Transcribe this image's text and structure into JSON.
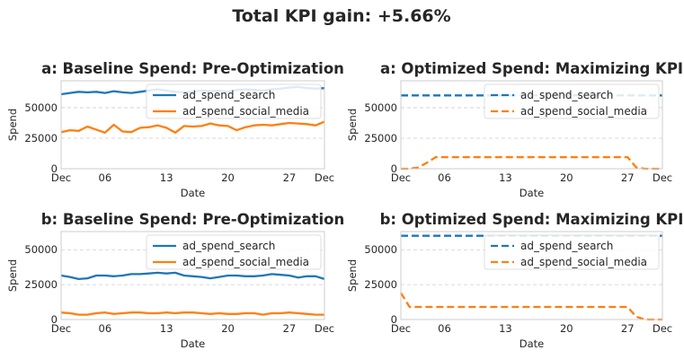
{
  "figure": {
    "title": "Total KPI gain: +5.66%"
  },
  "colors": {
    "search": "#1f77b4",
    "social": "#ff7f0e"
  },
  "chart_data": [
    {
      "type": "line",
      "title": "a: Baseline Spend: Pre-Optimization",
      "xlabel": "Date",
      "ylabel": "Spend",
      "x": [
        1,
        2,
        3,
        4,
        5,
        6,
        7,
        8,
        9,
        10,
        11,
        12,
        13,
        14,
        15,
        16,
        17,
        18,
        19,
        20,
        21,
        22,
        23,
        24,
        25,
        26,
        27,
        28,
        29,
        30,
        31
      ],
      "xticks": [
        1,
        6,
        13,
        20,
        27,
        31
      ],
      "xticklabels": [
        "Dec",
        "06",
        "13",
        "20",
        "27",
        "Dec"
      ],
      "xlim": [
        1,
        31
      ],
      "ylim": [
        0,
        72000
      ],
      "yticks": [
        0,
        25000,
        50000
      ],
      "line_style": "solid",
      "legend": "top-right",
      "grid": true,
      "series": [
        {
          "name": "ad_spend_search",
          "color": "#1f77b4",
          "values": [
            61000,
            62000,
            63000,
            62500,
            63000,
            62000,
            63500,
            62500,
            62000,
            63000,
            64000,
            65000,
            64000,
            63000,
            62500,
            63000,
            64000,
            63500,
            64000,
            63000,
            64500,
            65000,
            64500,
            64000,
            65000,
            65500,
            66500,
            67000,
            66000,
            65500,
            66000
          ]
        },
        {
          "name": "ad_spend_social_media",
          "color": "#ff7f0e",
          "values": [
            30000,
            31500,
            31000,
            34500,
            32000,
            29500,
            36000,
            30500,
            30000,
            33500,
            34000,
            35500,
            33500,
            29500,
            35000,
            34500,
            35000,
            37000,
            35500,
            35000,
            31500,
            34000,
            35500,
            36000,
            35500,
            36500,
            37500,
            37000,
            36500,
            35500,
            38500
          ]
        }
      ]
    },
    {
      "type": "line",
      "title": "a: Optimized Spend: Maximizing KPI",
      "xlabel": "Date",
      "ylabel": "Spend",
      "x": [
        1,
        2,
        3,
        4,
        5,
        6,
        7,
        8,
        9,
        10,
        11,
        12,
        13,
        14,
        15,
        16,
        17,
        18,
        19,
        20,
        21,
        22,
        23,
        24,
        25,
        26,
        27,
        28,
        29,
        30,
        31
      ],
      "xticks": [
        1,
        6,
        13,
        20,
        27,
        31
      ],
      "xticklabels": [
        "Dec",
        "06",
        "13",
        "20",
        "27",
        "Dec"
      ],
      "xlim": [
        1,
        31
      ],
      "ylim": [
        0,
        72000
      ],
      "yticks": [
        0,
        25000,
        50000
      ],
      "line_style": "dashed",
      "legend": "top-right",
      "grid": true,
      "series": [
        {
          "name": "ad_spend_search",
          "color": "#1f77b4",
          "values": [
            60000,
            60000,
            60000,
            60000,
            60000,
            60000,
            60000,
            60000,
            60000,
            60000,
            60000,
            60000,
            60000,
            60000,
            60000,
            60000,
            60000,
            60000,
            60000,
            60000,
            60000,
            60000,
            60000,
            60000,
            60000,
            60000,
            60000,
            60000,
            60000,
            60000,
            60000
          ]
        },
        {
          "name": "ad_spend_social_media",
          "color": "#ff7f0e",
          "values": [
            0,
            0,
            1000,
            5000,
            9500,
            9500,
            9500,
            9500,
            9500,
            9500,
            9500,
            9500,
            9500,
            9500,
            9500,
            9500,
            9500,
            9500,
            9500,
            9500,
            9500,
            9500,
            9500,
            9500,
            9500,
            9500,
            9500,
            1000,
            0,
            0,
            0
          ]
        }
      ]
    },
    {
      "type": "line",
      "title": "b: Baseline Spend: Pre-Optimization",
      "xlabel": "Date",
      "ylabel": "Spend",
      "x": [
        1,
        2,
        3,
        4,
        5,
        6,
        7,
        8,
        9,
        10,
        11,
        12,
        13,
        14,
        15,
        16,
        17,
        18,
        19,
        20,
        21,
        22,
        23,
        24,
        25,
        26,
        27,
        28,
        29,
        30,
        31
      ],
      "xticks": [
        1,
        6,
        13,
        20,
        27,
        31
      ],
      "xticklabels": [
        "Dec",
        "06",
        "13",
        "20",
        "27",
        "Dec"
      ],
      "xlim": [
        1,
        31
      ],
      "ylim": [
        0,
        63000
      ],
      "yticks": [
        0,
        25000,
        50000
      ],
      "line_style": "solid",
      "legend": "top-right",
      "grid": true,
      "series": [
        {
          "name": "ad_spend_search",
          "color": "#1f77b4",
          "values": [
            31500,
            30500,
            29000,
            29500,
            31500,
            31500,
            31000,
            31500,
            32500,
            32500,
            33000,
            33500,
            33000,
            33500,
            31500,
            31000,
            30500,
            29500,
            30500,
            31500,
            31500,
            31000,
            31000,
            31500,
            32500,
            32000,
            31500,
            30000,
            31000,
            31000,
            29000
          ]
        },
        {
          "name": "ad_spend_social_media",
          "color": "#ff7f0e",
          "values": [
            5000,
            4500,
            3500,
            3500,
            4500,
            5000,
            4000,
            4500,
            5000,
            5000,
            4500,
            4500,
            5000,
            4500,
            5000,
            5000,
            4500,
            4000,
            4500,
            4000,
            4000,
            4500,
            4500,
            3500,
            4500,
            4500,
            5000,
            4500,
            4000,
            3500,
            3500
          ]
        }
      ]
    },
    {
      "type": "line",
      "title": "b: Optimized Spend: Maximizing KPI",
      "xlabel": "Date",
      "ylabel": "Spend",
      "x": [
        1,
        2,
        3,
        4,
        5,
        6,
        7,
        8,
        9,
        10,
        11,
        12,
        13,
        14,
        15,
        16,
        17,
        18,
        19,
        20,
        21,
        22,
        23,
        24,
        25,
        26,
        27,
        28,
        29,
        30,
        31
      ],
      "xticks": [
        1,
        6,
        13,
        20,
        27,
        31
      ],
      "xticklabels": [
        "Dec",
        "06",
        "13",
        "20",
        "27",
        "Dec"
      ],
      "xlim": [
        1,
        31
      ],
      "ylim": [
        0,
        63000
      ],
      "yticks": [
        0,
        25000,
        50000
      ],
      "line_style": "dashed",
      "legend": "top-right",
      "grid": true,
      "series": [
        {
          "name": "ad_spend_search",
          "color": "#1f77b4",
          "values": [
            60000,
            60000,
            60000,
            60000,
            60000,
            60000,
            60000,
            60000,
            60000,
            60000,
            60000,
            60000,
            60000,
            60000,
            60000,
            60000,
            60000,
            60000,
            60000,
            60000,
            60000,
            60000,
            60000,
            60000,
            60000,
            60000,
            60000,
            60000,
            60000,
            60000,
            60000
          ]
        },
        {
          "name": "ad_spend_social_media",
          "color": "#ff7f0e",
          "values": [
            19000,
            9000,
            9000,
            9000,
            9000,
            9000,
            9000,
            9000,
            9000,
            9000,
            9000,
            9000,
            9000,
            9000,
            9000,
            9000,
            9000,
            9000,
            9000,
            9000,
            9000,
            9000,
            9000,
            9000,
            9000,
            9000,
            9000,
            2000,
            0,
            0,
            0
          ]
        }
      ]
    }
  ]
}
